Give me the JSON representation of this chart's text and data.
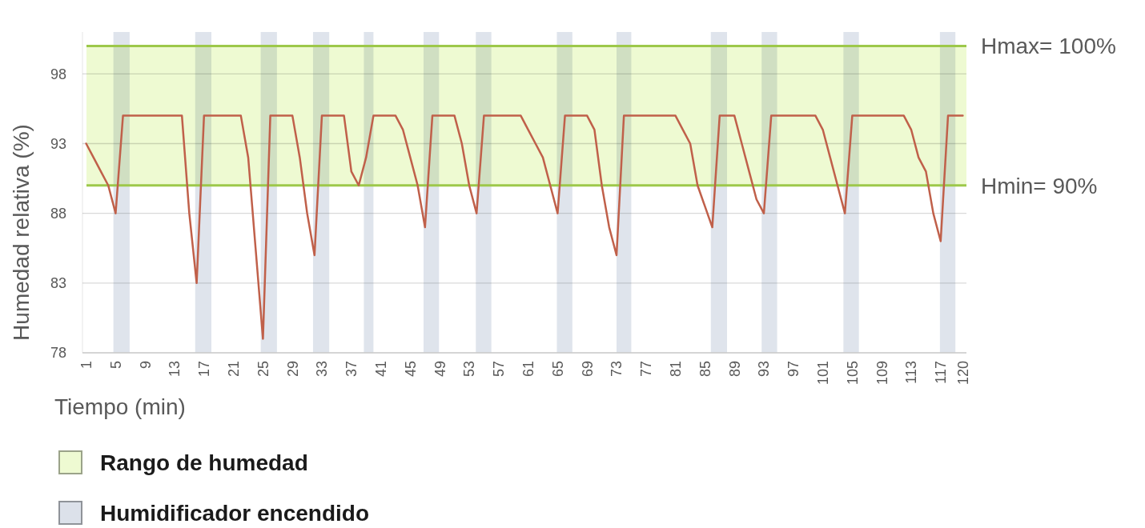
{
  "chart_data": {
    "type": "line",
    "xlabel": "Tiempo (min)",
    "ylabel": "Humedad relativa (%)",
    "x": [
      1,
      2,
      3,
      4,
      5,
      6,
      7,
      8,
      9,
      10,
      11,
      12,
      13,
      14,
      15,
      16,
      17,
      18,
      19,
      20,
      21,
      22,
      23,
      24,
      25,
      26,
      27,
      28,
      29,
      30,
      31,
      32,
      33,
      34,
      35,
      36,
      37,
      38,
      39,
      40,
      41,
      42,
      43,
      44,
      45,
      46,
      47,
      48,
      49,
      50,
      51,
      52,
      53,
      54,
      55,
      56,
      57,
      58,
      59,
      60,
      61,
      62,
      63,
      64,
      65,
      66,
      67,
      68,
      69,
      70,
      71,
      72,
      73,
      74,
      75,
      76,
      77,
      78,
      79,
      80,
      81,
      82,
      83,
      84,
      85,
      86,
      87,
      88,
      89,
      90,
      91,
      92,
      93,
      94,
      95,
      96,
      97,
      98,
      99,
      100,
      101,
      102,
      103,
      104,
      105,
      106,
      107,
      108,
      109,
      110,
      111,
      112,
      113,
      114,
      115,
      116,
      117,
      118,
      119,
      120
    ],
    "series": [
      {
        "color": "#c0604a",
        "values": [
          93,
          92,
          91,
          90,
          88,
          95,
          95,
          95,
          95,
          95,
          95,
          95,
          95,
          95,
          88,
          83,
          95,
          95,
          95,
          95,
          95,
          95,
          92,
          85.5,
          79,
          95,
          95,
          95,
          95,
          92,
          88,
          85,
          95,
          95,
          95,
          95,
          91,
          90,
          92,
          95,
          95,
          95,
          95,
          94,
          92,
          90,
          87,
          95,
          95,
          95,
          95,
          93,
          90,
          88,
          95,
          95,
          95,
          95,
          95,
          95,
          94,
          93,
          92,
          90,
          88,
          95,
          95,
          95,
          95,
          94,
          90,
          87,
          85,
          95,
          95,
          95,
          95,
          95,
          95,
          95,
          95,
          94,
          93,
          90,
          88.5,
          87,
          95,
          95,
          95,
          93,
          91,
          89,
          88,
          95,
          95,
          95,
          95,
          95,
          95,
          95,
          94,
          92,
          90,
          88,
          95,
          95,
          95,
          95,
          95,
          95,
          95,
          95,
          94,
          92,
          91,
          88,
          86,
          95,
          95,
          95
        ]
      }
    ],
    "xlim": [
      0.5,
      120.5
    ],
    "xticks": [
      1,
      5,
      9,
      13,
      17,
      21,
      25,
      29,
      33,
      37,
      41,
      45,
      49,
      53,
      57,
      61,
      65,
      69,
      73,
      77,
      81,
      85,
      89,
      93,
      97,
      101,
      105,
      109,
      113,
      117,
      120
    ],
    "ylim": [
      78,
      101
    ],
    "yticks": [
      78,
      83,
      88,
      93,
      98
    ],
    "grid": "y",
    "legend": "bottom",
    "marker": "none",
    "line_style": "solid",
    "bands": [
      {
        "axis": "y",
        "from": 90,
        "to": 100,
        "label": "Rango de humedad",
        "color": "#eefad2"
      },
      {
        "axis": "x",
        "from": 4.7,
        "to": 6.9,
        "label": "Humidificador encendido",
        "color": "#dce1ea"
      },
      {
        "axis": "x",
        "from": 15.8,
        "to": 18,
        "color": "#dce1ea"
      },
      {
        "axis": "x",
        "from": 24.7,
        "to": 26.9,
        "color": "#dce1ea"
      },
      {
        "axis": "x",
        "from": 31.8,
        "to": 34,
        "color": "#dce1ea"
      },
      {
        "axis": "x",
        "from": 38.7,
        "to": 40,
        "color": "#dce1ea"
      },
      {
        "axis": "x",
        "from": 46.8,
        "to": 48.9,
        "color": "#dce1ea"
      },
      {
        "axis": "x",
        "from": 53.9,
        "to": 56,
        "color": "#dce1ea"
      },
      {
        "axis": "x",
        "from": 64.9,
        "to": 67,
        "color": "#dce1ea"
      },
      {
        "axis": "x",
        "from": 73,
        "to": 75,
        "color": "#dce1ea"
      },
      {
        "axis": "x",
        "from": 85.8,
        "to": 88,
        "color": "#dce1ea"
      },
      {
        "axis": "x",
        "from": 92.7,
        "to": 94.8,
        "color": "#dce1ea"
      },
      {
        "axis": "x",
        "from": 103.8,
        "to": 105.9,
        "color": "#dce1ea"
      },
      {
        "axis": "x",
        "from": 116.9,
        "to": 119,
        "color": "#dce1ea"
      }
    ],
    "ref_lines": [
      {
        "axis": "y",
        "value": 100,
        "label": "Hmax= 100%",
        "color": "#9dc84a"
      },
      {
        "axis": "y",
        "value": 90,
        "label": "Hmin= 90%",
        "color": "#9dc84a"
      }
    ]
  }
}
